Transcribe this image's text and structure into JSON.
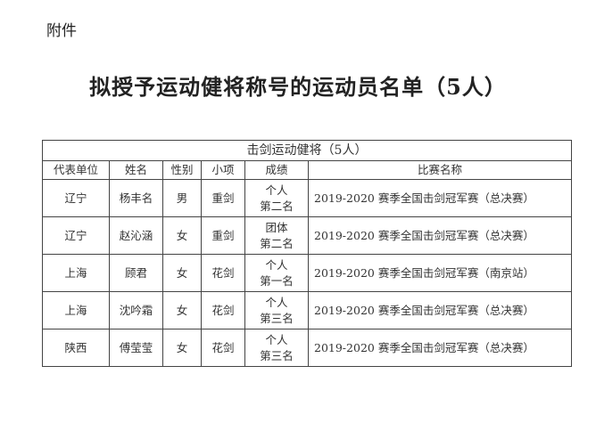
{
  "attachment_label": "附件",
  "title": "拟授予运动健将称号的运动员名单（5人）",
  "table": {
    "caption": "击剑运动健将（5人）",
    "headers": [
      "代表单位",
      "姓名",
      "性别",
      "小项",
      "成绩",
      "比赛名称"
    ],
    "rows": [
      {
        "unit": "辽宁",
        "name": "杨丰名",
        "gender": "男",
        "event": "重剑",
        "result1": "个人",
        "result2": "第二名",
        "competition": "2019-2020 赛季全国击剑冠军赛（总决赛）"
      },
      {
        "unit": "辽宁",
        "name": "赵沁涵",
        "gender": "女",
        "event": "重剑",
        "result1": "团体",
        "result2": "第二名",
        "competition": "2019-2020 赛季全国击剑冠军赛（总决赛）"
      },
      {
        "unit": "上海",
        "name": "顾君",
        "gender": "女",
        "event": "花剑",
        "result1": "个人",
        "result2": "第一名",
        "competition": "2019-2020 赛季全国击剑冠军赛（南京站）"
      },
      {
        "unit": "上海",
        "name": "沈吟霜",
        "gender": "女",
        "event": "花剑",
        "result1": "个人",
        "result2": "第三名",
        "competition": "2019-2020 赛季全国击剑冠军赛（总决赛）"
      },
      {
        "unit": "陕西",
        "name": "傅莹莹",
        "gender": "女",
        "event": "花剑",
        "result1": "个人",
        "result2": "第三名",
        "competition": "2019-2020 赛季全国击剑冠军赛（总决赛）"
      }
    ]
  }
}
